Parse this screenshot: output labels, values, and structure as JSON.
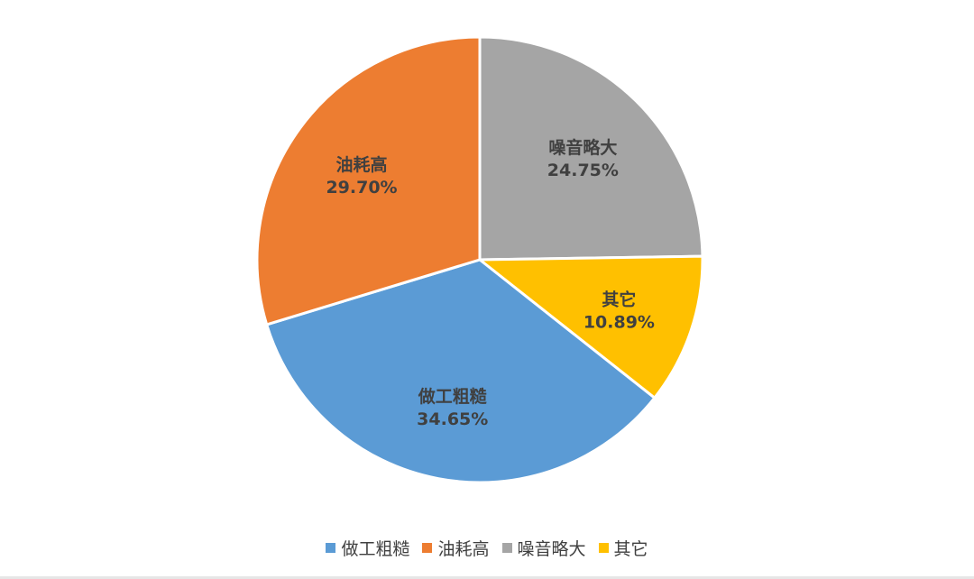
{
  "chart_data": {
    "type": "pie",
    "title": "",
    "categories": [
      "做工粗糙",
      "油耗高",
      "噪音略大",
      "其它"
    ],
    "values": [
      34.65,
      29.7,
      24.75,
      10.89
    ],
    "value_labels": [
      "34.65%",
      "29.70%",
      "24.75%",
      "10.89%"
    ],
    "colors": [
      "#5b9bd5",
      "#ed7d31",
      "#a5a5a5",
      "#ffc000"
    ],
    "legend_position": "bottom",
    "start_angle_deg": 90,
    "direction": "clockwise",
    "first_slice_index": 2
  },
  "legend": {
    "items": [
      {
        "label": "做工粗糙",
        "color": "#5b9bd5"
      },
      {
        "label": "油耗高",
        "color": "#ed7d31"
      },
      {
        "label": "噪音略大",
        "color": "#a5a5a5"
      },
      {
        "label": "其它",
        "color": "#ffc000"
      }
    ]
  }
}
